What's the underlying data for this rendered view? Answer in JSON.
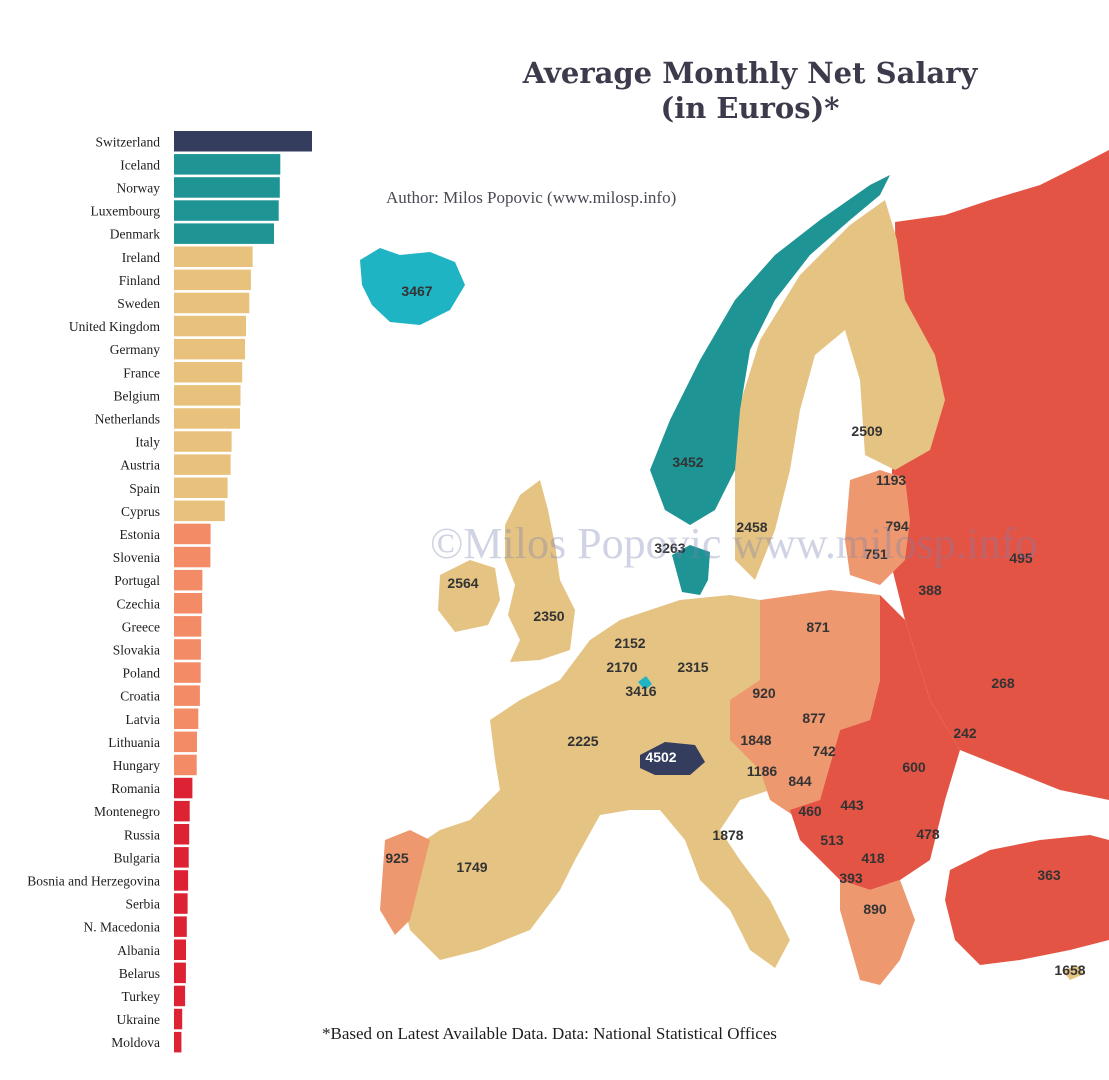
{
  "title_line1": "Average Monthly Net Salary",
  "title_line2": "(in Euros)*",
  "author": "Author: Milos Popovic (www.milosp.info)",
  "watermark": "©Milos Popovic www.milosp.info",
  "footnote": "*Based on Latest Available Data. Data:  National Statistical Offices",
  "colors": {
    "top": "#343d5e",
    "high": "#1e9495",
    "mid": "#e8c27c",
    "low": "#f38b66",
    "lowest": "#dc2233",
    "map_light_blue": "#1eb4c4",
    "map_red": "#e45445",
    "map_orange": "#ee9870",
    "map_sand": "#e5c383"
  },
  "chart_data": {
    "type": "bar",
    "orientation": "horizontal",
    "categories": [
      "Switzerland",
      "Iceland",
      "Norway",
      "Luxembourg",
      "Denmark",
      "Ireland",
      "Finland",
      "Sweden",
      "United Kingdom",
      "Germany",
      "France",
      "Belgium",
      "Netherlands",
      "Italy",
      "Austria",
      "Spain",
      "Cyprus",
      "Estonia",
      "Slovenia",
      "Portugal",
      "Czechia",
      "Greece",
      "Slovakia",
      "Poland",
      "Croatia",
      "Latvia",
      "Lithuania",
      "Hungary",
      "Romania",
      "Montenegro",
      "Russia",
      "Bulgaria",
      "Bosnia and Herzegovina",
      "Serbia",
      "N. Macedonia",
      "Albania",
      "Belarus",
      "Turkey",
      "Ukraine",
      "Moldova"
    ],
    "values": [
      4502,
      3467,
      3452,
      3416,
      3263,
      2564,
      2509,
      2458,
      2350,
      2315,
      2225,
      2170,
      2152,
      1878,
      1848,
      1749,
      1658,
      1193,
      1186,
      925,
      920,
      890,
      877,
      871,
      844,
      794,
      751,
      742,
      600,
      513,
      495,
      478,
      460,
      443,
      418,
      393,
      388,
      363,
      268,
      242
    ],
    "color_groups": [
      "top",
      "high",
      "high",
      "high",
      "high",
      "mid",
      "mid",
      "mid",
      "mid",
      "mid",
      "mid",
      "mid",
      "mid",
      "mid",
      "mid",
      "mid",
      "mid",
      "low",
      "low",
      "low",
      "low",
      "low",
      "low",
      "low",
      "low",
      "low",
      "low",
      "low",
      "lowest",
      "lowest",
      "lowest",
      "lowest",
      "lowest",
      "lowest",
      "lowest",
      "lowest",
      "lowest",
      "lowest",
      "lowest",
      "lowest"
    ],
    "map_labels": [
      "3467",
      "3452",
      "2509",
      "1193",
      "794",
      "751",
      "495",
      "388",
      "2458",
      "3263",
      "2564",
      "2350",
      "871",
      "268",
      "2152",
      "2170",
      "2315",
      "3416",
      "920",
      "877",
      "742",
      "242",
      "1848",
      "600",
      "2225",
      "4502",
      "1186",
      "844",
      "460",
      "443",
      "513",
      "478",
      "418",
      "393",
      "890",
      "1878",
      "925",
      "1749",
      "363",
      "1658"
    ]
  }
}
